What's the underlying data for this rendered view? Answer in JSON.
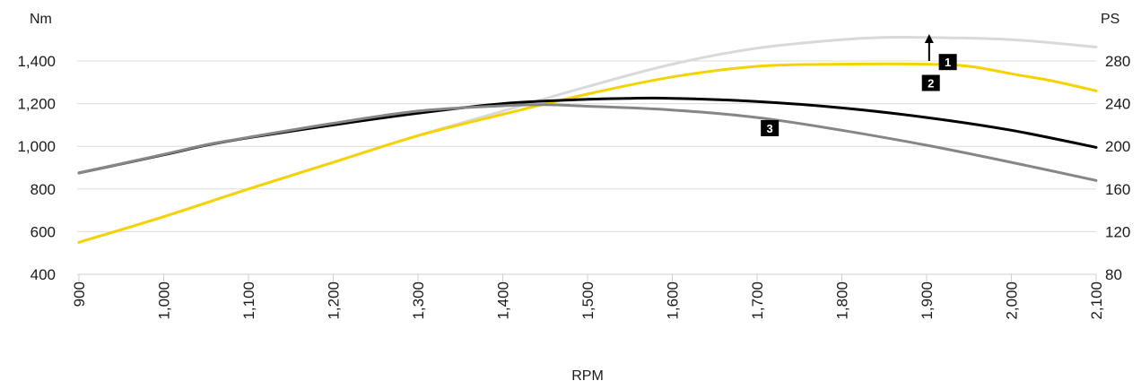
{
  "chart_data": {
    "type": "line",
    "xlabel": "RPM",
    "ylabel_left": "Nm",
    "ylabel_right": "PS",
    "x_ticks": [
      900,
      1000,
      1100,
      1200,
      1300,
      1400,
      1500,
      1600,
      1700,
      1800,
      1900,
      2000,
      2100
    ],
    "x_tick_labels": [
      "900",
      "1,000",
      "1,100",
      "1,200",
      "1,300",
      "1,400",
      "1,500",
      "1,600",
      "1,700",
      "1,800",
      "1,900",
      "2,000",
      "2,100"
    ],
    "xlim": [
      900,
      2100
    ],
    "y_left_ticks": [
      400,
      600,
      800,
      1000,
      1200,
      1400
    ],
    "y_left_tick_labels": [
      "400",
      "600",
      "800",
      "1,000",
      "1,200",
      "1,400"
    ],
    "ylim_left": [
      400,
      1400
    ],
    "y_right_ticks": [
      80,
      120,
      160,
      200,
      240,
      280
    ],
    "y_right_tick_labels": [
      "80",
      "120",
      "160",
      "200",
      "240",
      "280"
    ],
    "ylim_right": [
      80,
      280
    ],
    "grid": "horizontal",
    "series": [
      {
        "axis": "right",
        "color": "#d9d9d9",
        "x": [
          900,
          1000,
          1100,
          1200,
          1300,
          1400,
          1500,
          1600,
          1700,
          1800,
          1850,
          1900,
          2000,
          2100
        ],
        "values": [
          110,
          134,
          160,
          185,
          210,
          233,
          256,
          277,
          292,
          300,
          302,
          302,
          300,
          293
        ]
      },
      {
        "axis": "right",
        "color": "#f5d300",
        "x": [
          900,
          1000,
          1100,
          1200,
          1300,
          1400,
          1500,
          1600,
          1700,
          1800,
          1900,
          1950,
          2000,
          2050,
          2100
        ],
        "values": [
          110,
          134,
          160,
          185,
          210,
          230,
          249,
          265,
          275,
          277,
          277,
          275,
          268,
          261,
          252
        ]
      },
      {
        "axis": "left",
        "color": "#000000",
        "x": [
          900,
          1000,
          1050,
          1100,
          1200,
          1300,
          1400,
          1500,
          1550,
          1600,
          1700,
          1800,
          1900,
          2000,
          2100
        ],
        "values": [
          875,
          960,
          1005,
          1040,
          1100,
          1155,
          1200,
          1220,
          1225,
          1225,
          1210,
          1180,
          1135,
          1075,
          995
        ]
      },
      {
        "axis": "left",
        "color": "#868686",
        "x": [
          900,
          1000,
          1050,
          1100,
          1200,
          1300,
          1400,
          1450,
          1500,
          1600,
          1700,
          1800,
          1900,
          2000,
          2100
        ],
        "values": [
          875,
          962,
          1007,
          1042,
          1108,
          1165,
          1190,
          1195,
          1188,
          1170,
          1135,
          1075,
          1005,
          925,
          840
        ]
      }
    ],
    "annotations": [
      {
        "label": "1",
        "x": 1925,
        "value": 1395,
        "axis": "left",
        "arrow": true
      },
      {
        "label": "2",
        "x": 1905,
        "value": 1297,
        "axis": "left",
        "arrow": false
      },
      {
        "label": "3",
        "x": 1715,
        "value": 1085,
        "axis": "left",
        "arrow": false
      }
    ]
  }
}
